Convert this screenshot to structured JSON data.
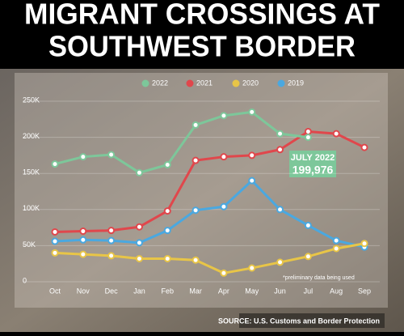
{
  "chart_data": {
    "type": "line",
    "title": [
      "MIGRANT CROSSINGS AT",
      "SOUTHWEST BORDER"
    ],
    "categories": [
      "Oct",
      "Nov",
      "Dec",
      "Jan",
      "Feb",
      "Mar",
      "Apr",
      "May",
      "Jun",
      "Jul",
      "Aug",
      "Sep"
    ],
    "series": [
      {
        "name": "2022",
        "color": "#7dc79a",
        "values": [
          163000,
          173000,
          176000,
          151000,
          162000,
          217000,
          230000,
          235000,
          205000,
          199976,
          null,
          null
        ],
        "value_labels": [
          null,
          null,
          null,
          null,
          null,
          null,
          null,
          null,
          null,
          "199,976",
          null,
          null
        ]
      },
      {
        "name": "2021",
        "color": "#e0474c",
        "values": [
          69000,
          70000,
          71000,
          76000,
          98000,
          168000,
          173000,
          175000,
          183000,
          208000,
          205000,
          186000
        ]
      },
      {
        "name": "2020",
        "color": "#e8c547",
        "values": [
          40000,
          38000,
          36000,
          32000,
          32000,
          30000,
          12000,
          19000,
          27000,
          35000,
          46000,
          53000
        ]
      },
      {
        "name": "2019",
        "color": "#4aa8e0",
        "values": [
          56000,
          58000,
          57000,
          54000,
          71000,
          99000,
          104000,
          140000,
          100000,
          78000,
          57000,
          48000
        ]
      }
    ],
    "ylim": [
      0,
      250000
    ],
    "yticks": [
      0,
      {
        "value": 50000,
        "label": "50K"
      },
      {
        "value": 100000,
        "label": "100K"
      },
      {
        "value": 150000,
        "label": "150K"
      },
      {
        "value": 200000,
        "label": "200K"
      },
      {
        "value": 250000,
        "label": "250K"
      }
    ],
    "grid": true,
    "annotations": [
      "JULY 2022",
      "*preliminary data being used"
    ],
    "source": "SOURCE: U.S. Customs and Border Protection"
  }
}
